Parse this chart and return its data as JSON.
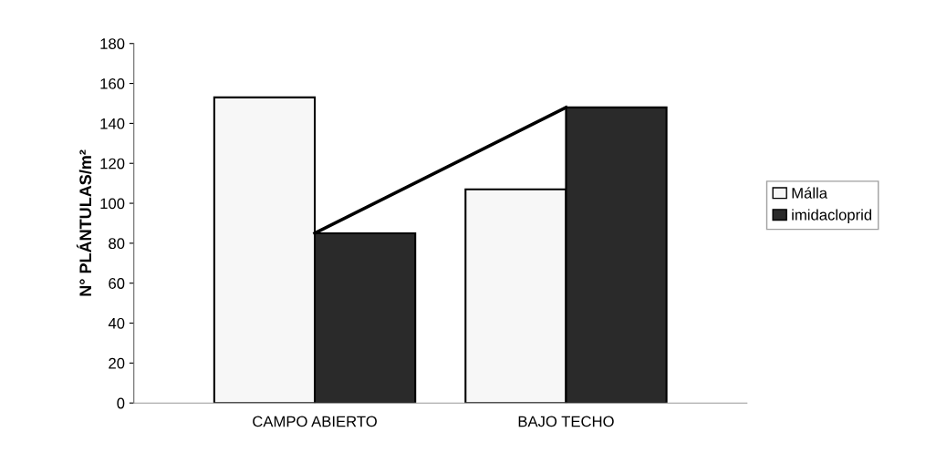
{
  "chart_data": {
    "type": "bar",
    "ylabel": "N° PLÁNTULAS/m²",
    "categories": [
      "CAMPO ABIERTO",
      "BAJO TECHO"
    ],
    "series": [
      {
        "name": "Málla",
        "color": "#f7f7f7",
        "values": [
          153,
          107
        ]
      },
      {
        "name": "imidacloprid",
        "color": "#2a2a2a",
        "values": [
          85,
          148
        ]
      },
      {
        "type": "line",
        "color": "#000000",
        "values": [
          85,
          148
        ]
      }
    ],
    "ylim": [
      0,
      180
    ],
    "yticks": [
      0,
      20,
      40,
      60,
      80,
      100,
      120,
      140,
      160,
      180
    ],
    "grid": false,
    "legend": "right",
    "marker": "none",
    "line_style": "solid"
  }
}
